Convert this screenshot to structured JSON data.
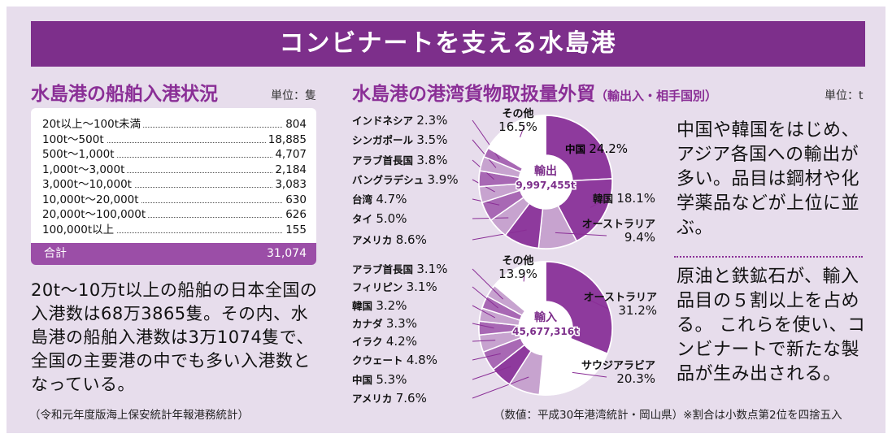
{
  "banner_title": "コンビナートを支える水島港",
  "left": {
    "title": "水島港の船舶入港状況",
    "unit": "単位：隻",
    "rows": [
      {
        "label": "20t以上～100t未満",
        "value": "804"
      },
      {
        "label": "100t～500t",
        "value": "18,885"
      },
      {
        "label": "500t～1,000t",
        "value": "4,707"
      },
      {
        "label": "1,000t～3,000t",
        "value": "2,184"
      },
      {
        "label": "3,000t～10,000t",
        "value": "3,083"
      },
      {
        "label": "10,000t～20,000t",
        "value": "630"
      },
      {
        "label": "20,000t～100,000t",
        "value": "626"
      },
      {
        "label": "100,000t以上",
        "value": "155"
      }
    ],
    "total_label": "合計",
    "total_value": "31,074",
    "body_text": "20t～10万t以上の船舶の日本全国の入港数は68万3865隻。その内、水島港の船舶入港数は3万1074隻で、全国の主要港の中でも多い入港数となっている。",
    "source": "（令和元年度版海上保安統計年報港務統計）"
  },
  "right": {
    "title": "水島港の港湾貨物取扱量外貿",
    "title_suffix": "（輸出入・相手国別）",
    "unit": "単位：t",
    "export_text": "中国や韓国をはじめ、アジア各国への輸出が多い。品目は鋼材や化学薬品などが上位に並ぶ。",
    "import_text": "原油と鉄鉱石が、輸入品目の５割以上を占める。 これらを使い、コンビナートで新たな製品が生み出される。",
    "source": "（数値：平成30年港湾統計・岡山県）※割合は小数点第2位を四捨五入"
  },
  "colors": {
    "banner": "#7d2f8b",
    "accent": "#8a2e96",
    "panel_bg": "#e7ddec",
    "slice_dark": "#8e3a9d",
    "slice_mid": "#a868b4",
    "slice_light": "#c7a3cf"
  },
  "chart_data": [
    {
      "type": "pie",
      "title": "輸出",
      "total": "9,997,455t",
      "slices": [
        {
          "name": "中国",
          "value": 24.2
        },
        {
          "name": "韓国",
          "value": 18.1
        },
        {
          "name": "オーストラリア",
          "value": 9.4
        },
        {
          "name": "アメリカ",
          "value": 8.6
        },
        {
          "name": "タイ",
          "value": 5.0
        },
        {
          "name": "台湾",
          "value": 4.7
        },
        {
          "name": "バングラデシュ",
          "value": 3.9
        },
        {
          "name": "アラブ首長国",
          "value": 3.8
        },
        {
          "name": "シンガポール",
          "value": 3.5
        },
        {
          "name": "インドネシア",
          "value": 2.3
        },
        {
          "name": "その他",
          "value": 16.5
        }
      ]
    },
    {
      "type": "pie",
      "title": "輸入",
      "total": "45,677,316t",
      "slices": [
        {
          "name": "オーストラリア",
          "value": 31.2
        },
        {
          "name": "サウジアラビア",
          "value": 20.3
        },
        {
          "name": "アメリカ",
          "value": 7.6
        },
        {
          "name": "中国",
          "value": 5.3
        },
        {
          "name": "クウェート",
          "value": 4.8
        },
        {
          "name": "イラク",
          "value": 4.2
        },
        {
          "name": "カナダ",
          "value": 3.3
        },
        {
          "name": "韓国",
          "value": 3.2
        },
        {
          "name": "フィリピン",
          "value": 3.1
        },
        {
          "name": "アラブ首長国",
          "value": 3.1
        },
        {
          "name": "その他",
          "value": 13.9
        }
      ]
    }
  ]
}
